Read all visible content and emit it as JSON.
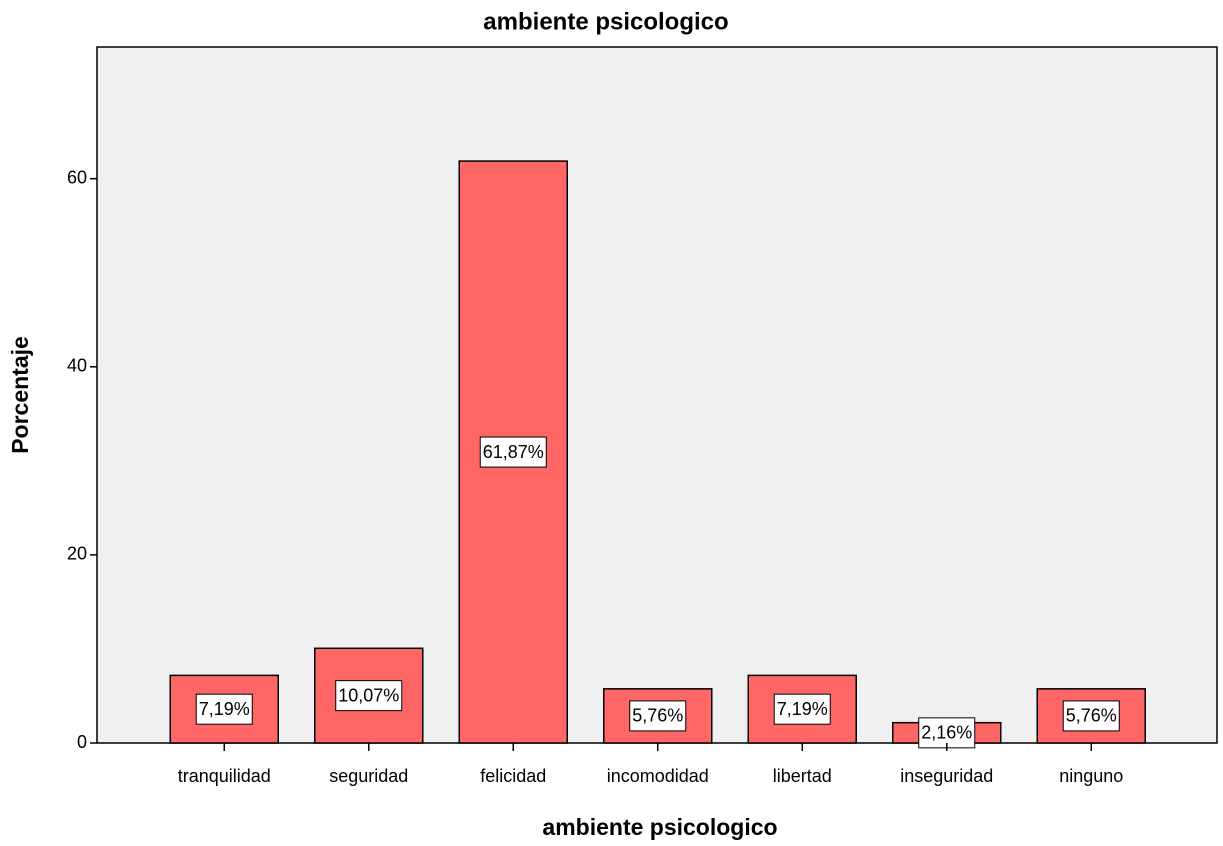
{
  "chart_data": {
    "type": "bar",
    "title": "ambiente psicologico",
    "x_label": "ambiente psicologico",
    "y_label": "Porcentaje",
    "categories": [
      "tranquilidad",
      "seguridad",
      "felicidad",
      "incomodidad",
      "libertad",
      "inseguridad",
      "ninguno"
    ],
    "values": [
      7.19,
      10.07,
      61.87,
      5.76,
      7.19,
      2.16,
      5.76
    ],
    "value_labels": [
      "7,19%",
      "10,07%",
      "61,87%",
      "5,76%",
      "7,19%",
      "2,16%",
      "5,76%"
    ],
    "color": "#ff6666",
    "ylim": [
      0,
      74
    ],
    "yticks": [
      0,
      20,
      40,
      60
    ],
    "grid": false
  }
}
